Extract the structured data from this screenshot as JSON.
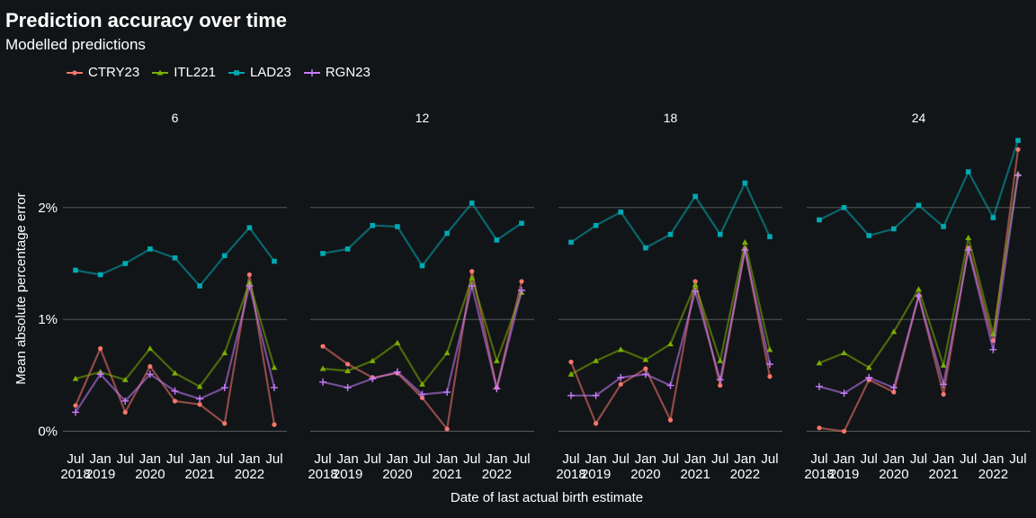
{
  "title": "Prediction accuracy over time",
  "subtitle": "Modelled predictions",
  "chart_data": {
    "type": "line",
    "xlabel": "Date of last actual birth estimate",
    "ylabel": "Mean absolute percentage error",
    "y_ticks": [
      0,
      1,
      2
    ],
    "y_tick_labels": [
      "0%",
      "1%",
      "2%"
    ],
    "ylim": [
      -0.1,
      2.65
    ],
    "grid": true,
    "legend_position": "top-left",
    "x_tick_top": [
      "Jul",
      "Jan",
      "Jul",
      "Jan",
      "Jul",
      "Jan",
      "Jul",
      "Jan",
      "Jul"
    ],
    "x_tick_bottom": [
      "2018",
      "2019",
      "",
      "2020",
      "",
      "2021",
      "",
      "2022",
      ""
    ],
    "series_styles": [
      {
        "name": "CTRY23",
        "color": "#f8766d",
        "marker": "circle"
      },
      {
        "name": "ITL221",
        "color": "#7cae00",
        "marker": "triangle"
      },
      {
        "name": "LAD23",
        "color": "#00a9b4",
        "marker": "square"
      },
      {
        "name": "RGN23",
        "color": "#c77cff",
        "marker": "plus"
      }
    ],
    "facets": [
      {
        "label": "6",
        "series": [
          {
            "name": "CTRY23",
            "values": [
              0.23,
              0.74,
              0.17,
              0.58,
              0.27,
              0.24,
              0.07,
              1.4,
              0.06
            ]
          },
          {
            "name": "ITL221",
            "values": [
              0.47,
              0.53,
              0.46,
              0.74,
              0.52,
              0.4,
              0.7,
              1.33,
              0.57
            ]
          },
          {
            "name": "LAD23",
            "values": [
              1.44,
              1.4,
              1.5,
              1.63,
              1.55,
              1.3,
              1.57,
              1.82,
              1.52
            ]
          },
          {
            "name": "RGN23",
            "values": [
              0.17,
              0.51,
              0.27,
              0.51,
              0.36,
              0.29,
              0.39,
              1.3,
              0.39
            ]
          }
        ]
      },
      {
        "label": "12",
        "series": [
          {
            "name": "CTRY23",
            "values": [
              0.76,
              0.6,
              0.48,
              0.52,
              0.3,
              0.02,
              1.43,
              0.39,
              1.34
            ]
          },
          {
            "name": "ITL221",
            "values": [
              0.56,
              0.54,
              0.63,
              0.79,
              0.42,
              0.7,
              1.37,
              0.63,
              1.24
            ]
          },
          {
            "name": "LAD23",
            "values": [
              1.59,
              1.63,
              1.84,
              1.83,
              1.48,
              1.77,
              2.04,
              1.71,
              1.86
            ]
          },
          {
            "name": "RGN23",
            "values": [
              0.44,
              0.39,
              0.47,
              0.53,
              0.33,
              0.35,
              1.3,
              0.38,
              1.26
            ]
          }
        ]
      },
      {
        "label": "18",
        "series": [
          {
            "name": "CTRY23",
            "values": [
              0.62,
              0.07,
              0.42,
              0.56,
              0.1,
              1.34,
              0.41,
              1.63,
              0.49
            ]
          },
          {
            "name": "ITL221",
            "values": [
              0.51,
              0.63,
              0.73,
              0.64,
              0.78,
              1.31,
              0.63,
              1.69,
              0.73
            ]
          },
          {
            "name": "LAD23",
            "values": [
              1.69,
              1.84,
              1.96,
              1.64,
              1.76,
              2.1,
              1.76,
              2.22,
              1.74
            ]
          },
          {
            "name": "RGN23",
            "values": [
              0.32,
              0.32,
              0.48,
              0.51,
              0.41,
              1.25,
              0.46,
              1.62,
              0.6
            ]
          }
        ]
      },
      {
        "label": "24",
        "series": [
          {
            "name": "CTRY23",
            "values": [
              0.03,
              0.0,
              0.46,
              0.35,
              1.21,
              0.33,
              1.64,
              0.81,
              2.52
            ]
          },
          {
            "name": "ITL221",
            "values": [
              0.61,
              0.7,
              0.57,
              0.89,
              1.27,
              0.59,
              1.73,
              0.87,
              2.3
            ]
          },
          {
            "name": "LAD23",
            "values": [
              1.89,
              2.0,
              1.75,
              1.81,
              2.02,
              1.83,
              2.32,
              1.91,
              2.6
            ]
          },
          {
            "name": "RGN23",
            "values": [
              0.4,
              0.34,
              0.48,
              0.39,
              1.21,
              0.42,
              1.62,
              0.73,
              2.29
            ]
          }
        ]
      }
    ]
  }
}
